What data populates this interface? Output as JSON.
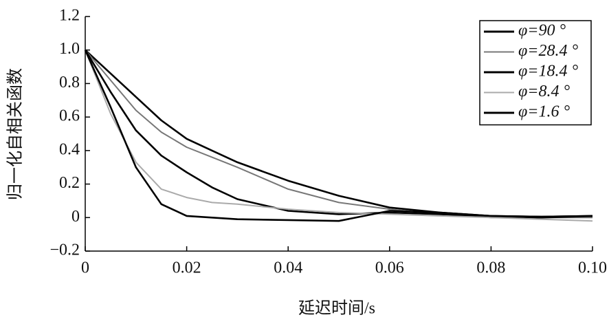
{
  "chart_data": {
    "type": "line",
    "xlabel": "延迟时间/s",
    "ylabel": "归一化自相关函数",
    "x": [
      0,
      0.005,
      0.01,
      0.015,
      0.02,
      0.025,
      0.03,
      0.04,
      0.05,
      0.06,
      0.07,
      0.08,
      0.09,
      0.1
    ],
    "series": [
      {
        "name": "φ=90 °",
        "color": "#000000",
        "values": [
          1,
          0.86,
          0.72,
          0.58,
          0.47,
          0.4,
          0.33,
          0.22,
          0.13,
          0.06,
          0.03,
          0.01,
          0.005,
          0.01
        ]
      },
      {
        "name": "φ=28.4 °",
        "color": "#777777",
        "values": [
          1,
          0.82,
          0.64,
          0.51,
          0.42,
          0.36,
          0.3,
          0.17,
          0.09,
          0.05,
          0.02,
          0,
          0,
          0
        ]
      },
      {
        "name": "φ=18.4 °",
        "color": "#000000",
        "values": [
          1,
          0.75,
          0.52,
          0.37,
          0.27,
          0.18,
          0.11,
          0.04,
          0.02,
          0.03,
          0.02,
          0.01,
          0,
          0.01
        ]
      },
      {
        "name": "φ=8.4 °",
        "color": "#aaaaaa",
        "values": [
          1,
          0.62,
          0.33,
          0.17,
          0.12,
          0.09,
          0.08,
          0.05,
          0.03,
          0.02,
          0.01,
          0,
          -0.01,
          -0.02
        ]
      },
      {
        "name": "φ=1.6 °",
        "color": "#000000",
        "values": [
          1,
          0.66,
          0.3,
          0.08,
          0.01,
          0,
          -0.01,
          -0.015,
          -0.02,
          0.04,
          0.03,
          0.01,
          0.005,
          0.01
        ]
      }
    ],
    "xlim": [
      0,
      0.1
    ],
    "xticks": [
      0,
      0.02,
      0.04,
      0.06,
      0.08,
      {
        "value": 0.1,
        "label": "0.10"
      }
    ],
    "ylim": [
      -0.2,
      1.2
    ],
    "yticks": [
      {
        "value": -0.2,
        "label": "−0.2"
      },
      0,
      0.2,
      0.4,
      0.6,
      0.8,
      {
        "value": 1,
        "label": "1.0"
      },
      1.2
    ],
    "grid": false,
    "legend": "upper right"
  }
}
